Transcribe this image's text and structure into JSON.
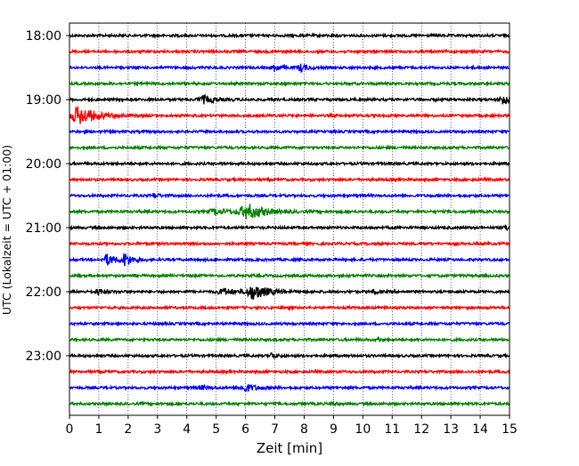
{
  "chart_data": {
    "type": "line",
    "title": "",
    "xlabel": "Zeit  [min]",
    "ylabel": "UTC (Lokalzeit = UTC + 01:00)",
    "xlim": [
      0,
      15
    ],
    "x_ticks": [
      "0",
      "1",
      "2",
      "3",
      "4",
      "5",
      "6",
      "7",
      "8",
      "9",
      "10",
      "11",
      "12",
      "13",
      "14",
      "15"
    ],
    "y_tick_labels": [
      "18:00",
      "19:00",
      "20:00",
      "21:00",
      "22:00",
      "23:00"
    ],
    "grid": "vertical dotted",
    "trace_interval_minutes": 15,
    "colors": [
      "#000000",
      "#ff0000",
      "#0000ff",
      "#008000"
    ],
    "traces": [
      {
        "start": "18:00",
        "color": "#000000",
        "events": []
      },
      {
        "start": "18:15",
        "color": "#ff0000",
        "events": []
      },
      {
        "start": "18:30",
        "color": "#0000ff",
        "events": [
          {
            "t": 7.0,
            "amp": 4,
            "dur": 0.4
          },
          {
            "t": 7.9,
            "amp": 4,
            "dur": 0.5
          }
        ]
      },
      {
        "start": "18:45",
        "color": "#008000",
        "events": []
      },
      {
        "start": "19:00",
        "color": "#000000",
        "events": [
          {
            "t": 4.6,
            "amp": 4,
            "dur": 0.8
          },
          {
            "t": 14.8,
            "amp": 6,
            "dur": 0.5
          }
        ]
      },
      {
        "start": "19:15",
        "color": "#ff0000",
        "events": [
          {
            "t": 0.35,
            "amp": 10,
            "dur": 1.2
          }
        ]
      },
      {
        "start": "19:30",
        "color": "#0000ff",
        "events": []
      },
      {
        "start": "19:45",
        "color": "#008000",
        "events": []
      },
      {
        "start": "20:00",
        "color": "#000000",
        "events": []
      },
      {
        "start": "20:15",
        "color": "#ff0000",
        "events": []
      },
      {
        "start": "20:30",
        "color": "#0000ff",
        "events": [
          {
            "t": 2.9,
            "amp": 3,
            "dur": 0.3
          }
        ]
      },
      {
        "start": "20:45",
        "color": "#008000",
        "events": [
          {
            "t": 5.0,
            "amp": 3,
            "dur": 1.0
          },
          {
            "t": 6.1,
            "amp": 8,
            "dur": 1.2
          }
        ]
      },
      {
        "start": "21:00",
        "color": "#000000",
        "events": [
          {
            "t": 14.9,
            "amp": 3,
            "dur": 0.3
          }
        ]
      },
      {
        "start": "21:15",
        "color": "#ff0000",
        "events": []
      },
      {
        "start": "21:30",
        "color": "#0000ff",
        "events": [
          {
            "t": 1.3,
            "amp": 6,
            "dur": 0.6
          },
          {
            "t": 1.9,
            "amp": 7,
            "dur": 0.5
          }
        ]
      },
      {
        "start": "21:45",
        "color": "#008000",
        "events": []
      },
      {
        "start": "22:00",
        "color": "#000000",
        "events": [
          {
            "t": 1.0,
            "amp": 3,
            "dur": 0.6
          },
          {
            "t": 5.3,
            "amp": 3,
            "dur": 1.0
          },
          {
            "t": 6.3,
            "amp": 8,
            "dur": 1.0
          },
          {
            "t": 10.4,
            "amp": 2,
            "dur": 0.3
          }
        ]
      },
      {
        "start": "22:15",
        "color": "#ff0000",
        "events": []
      },
      {
        "start": "22:30",
        "color": "#0000ff",
        "events": []
      },
      {
        "start": "22:45",
        "color": "#008000",
        "events": [
          {
            "t": 10.5,
            "amp": 2,
            "dur": 0.2
          }
        ]
      },
      {
        "start": "23:00",
        "color": "#000000",
        "events": [
          {
            "t": 6.9,
            "amp": 3,
            "dur": 0.3
          }
        ]
      },
      {
        "start": "23:15",
        "color": "#ff0000",
        "events": []
      },
      {
        "start": "23:30",
        "color": "#0000ff",
        "events": [
          {
            "t": 4.5,
            "amp": 2,
            "dur": 0.6
          },
          {
            "t": 6.0,
            "amp": 4,
            "dur": 0.8
          }
        ]
      },
      {
        "start": "23:45",
        "color": "#008000",
        "events": [
          {
            "t": 9.0,
            "amp": 2,
            "dur": 0.3
          }
        ]
      }
    ]
  }
}
